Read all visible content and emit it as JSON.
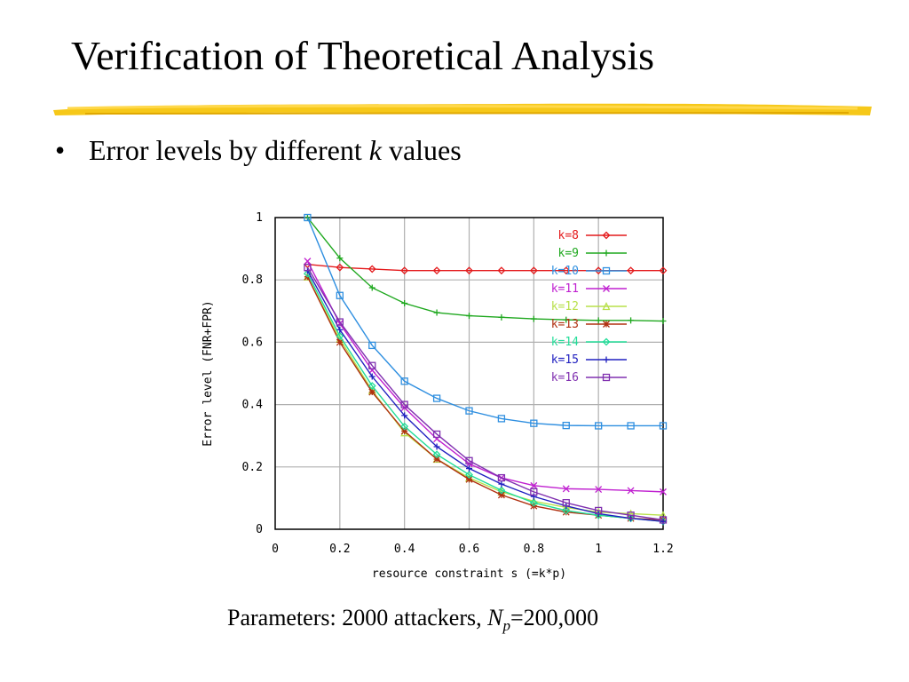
{
  "slide": {
    "title": "Verification of Theoretical Analysis",
    "bullet": {
      "marker": "•",
      "text_before": "Error levels by different ",
      "k_var": "k",
      "text_after": " values"
    },
    "caption": {
      "prefix": "Parameters: 2000 attackers, ",
      "n_symbol": "N",
      "n_subscript": "p",
      "suffix": "=200,000"
    },
    "accent_color": "#f5c200"
  },
  "chart_data": {
    "type": "line",
    "xlabel": "resource constraint s (=k*p)",
    "ylabel": "Error level (FNR+FPR)",
    "xlim": [
      0,
      1.2
    ],
    "ylim": [
      0,
      1
    ],
    "xticks": [
      "0",
      "0.2",
      "0.4",
      "0.6",
      "0.8",
      "1",
      "1.2"
    ],
    "yticks": [
      "0",
      "0.2",
      "0.4",
      "0.6",
      "0.8",
      "1"
    ],
    "grid": true,
    "legend_position": "top-right",
    "x": [
      0.1,
      0.2,
      0.3,
      0.4,
      0.5,
      0.6,
      0.7,
      0.8,
      0.9,
      1.0,
      1.1,
      1.2
    ],
    "series": [
      {
        "name": "k=8",
        "color": "#e41a1c",
        "marker": "diamond",
        "values": [
          0.85,
          0.84,
          0.835,
          0.83,
          0.83,
          0.83,
          0.83,
          0.83,
          0.83,
          0.83,
          0.83,
          0.83
        ]
      },
      {
        "name": "k=9",
        "color": "#1fa81f",
        "marker": "plus",
        "values": [
          1.0,
          0.87,
          0.775,
          0.725,
          0.695,
          0.685,
          0.68,
          0.675,
          0.672,
          0.67,
          0.67,
          0.668
        ]
      },
      {
        "name": "k=10",
        "color": "#2f8fe0",
        "marker": "square",
        "values": [
          1.0,
          0.75,
          0.59,
          0.475,
          0.42,
          0.38,
          0.355,
          0.34,
          0.333,
          0.332,
          0.332,
          0.332
        ]
      },
      {
        "name": "k=11",
        "color": "#c020d0",
        "marker": "x",
        "values": [
          0.86,
          0.66,
          0.51,
          0.39,
          0.29,
          0.21,
          0.165,
          0.14,
          0.13,
          0.128,
          0.124,
          0.12
        ]
      },
      {
        "name": "k=12",
        "color": "#b8e04a",
        "marker": "triangle",
        "values": [
          0.81,
          0.61,
          0.445,
          0.31,
          0.225,
          0.165,
          0.12,
          0.09,
          0.07,
          0.055,
          0.05,
          0.045
        ]
      },
      {
        "name": "k=13",
        "color": "#b03010",
        "marker": "star",
        "values": [
          0.81,
          0.6,
          0.44,
          0.315,
          0.225,
          0.16,
          0.11,
          0.075,
          0.055,
          0.045,
          0.035,
          0.03
        ]
      },
      {
        "name": "k=14",
        "color": "#22dd99",
        "marker": "diamond",
        "values": [
          0.82,
          0.62,
          0.46,
          0.33,
          0.24,
          0.175,
          0.125,
          0.085,
          0.06,
          0.045,
          0.035,
          0.025
        ]
      },
      {
        "name": "k=15",
        "color": "#2020c0",
        "marker": "plus",
        "values": [
          0.83,
          0.64,
          0.49,
          0.365,
          0.265,
          0.195,
          0.145,
          0.105,
          0.075,
          0.05,
          0.035,
          0.025
        ]
      },
      {
        "name": "k=16",
        "color": "#8030b0",
        "marker": "square",
        "values": [
          0.84,
          0.665,
          0.525,
          0.4,
          0.305,
          0.22,
          0.165,
          0.12,
          0.085,
          0.06,
          0.045,
          0.03
        ]
      }
    ]
  }
}
